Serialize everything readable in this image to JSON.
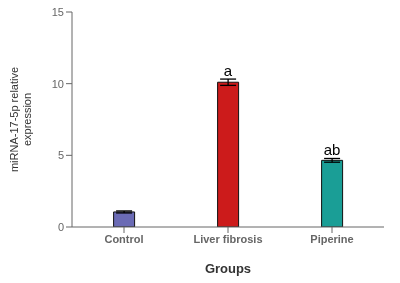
{
  "chart_data": {
    "type": "bar",
    "categories": [
      "Control",
      "Liver fibrosis",
      "Piperine"
    ],
    "values": [
      1.05,
      10.1,
      4.65
    ],
    "errors": [
      0.07,
      0.22,
      0.13
    ],
    "colors": [
      "#6B6BB5",
      "#CC1B1B",
      "#1A9E96"
    ],
    "annotations": [
      {
        "category": "Liver fibrosis",
        "y": 10.55,
        "text": "a"
      },
      {
        "category": "Piperine",
        "y": 5.0,
        "text": "ab"
      }
    ],
    "ylabel": "miRNA-17-5p relative\nexpression",
    "xlabel": "Groups",
    "ylim": [
      0,
      15
    ],
    "yticks": [
      0,
      5,
      10,
      15
    ],
    "grid": false
  }
}
